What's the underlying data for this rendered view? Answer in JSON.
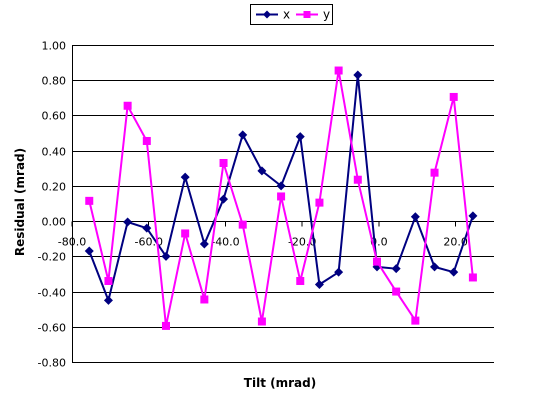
{
  "chart_data": {
    "type": "line",
    "xlabel": "Tilt (mrad)",
    "ylabel": "Residual (mrad)",
    "xlim": [
      -80,
      30
    ],
    "ylim": [
      -0.8,
      1.0
    ],
    "x_ticks": [
      -80,
      -60,
      -40,
      -20,
      0,
      20
    ],
    "x_tick_labels": [
      "-80.0",
      "-60.0",
      "-40.0",
      "-20.0",
      "0.0",
      "20.0"
    ],
    "y_ticks": [
      1.0,
      0.8,
      0.6,
      0.4,
      0.2,
      0.0,
      -0.2,
      -0.4,
      -0.6,
      -0.8
    ],
    "y_tick_labels": [
      "1.00",
      "0.80",
      "0.60",
      "0.40",
      "0.20",
      "0.00",
      "-0.20",
      "-0.40",
      "-0.60",
      "-0.80"
    ],
    "grid": "horizontal",
    "legend_position": "top",
    "series": [
      {
        "name": "x",
        "color": "#000080",
        "marker": "diamond",
        "points": [
          [
            -75.5,
            -0.17
          ],
          [
            -70.5,
            -0.45
          ],
          [
            -65.5,
            -0.005
          ],
          [
            -60.5,
            -0.04
          ],
          [
            -55.5,
            -0.2
          ],
          [
            -50.5,
            0.25
          ],
          [
            -45.5,
            -0.13
          ],
          [
            -40.5,
            0.125
          ],
          [
            -35.5,
            0.49
          ],
          [
            -30.5,
            0.285
          ],
          [
            -25.5,
            0.2
          ],
          [
            -20.5,
            0.48
          ],
          [
            -15.5,
            -0.36
          ],
          [
            -10.5,
            -0.29
          ],
          [
            -5.5,
            0.83
          ],
          [
            -0.5,
            -0.26
          ],
          [
            4.5,
            -0.27
          ],
          [
            9.5,
            0.025
          ],
          [
            14.5,
            -0.26
          ],
          [
            19.5,
            -0.29
          ],
          [
            24.5,
            0.03
          ]
        ]
      },
      {
        "name": "y",
        "color": "#ff00ff",
        "marker": "square",
        "points": [
          [
            -75.5,
            0.115
          ],
          [
            -70.5,
            -0.34
          ],
          [
            -65.5,
            0.655
          ],
          [
            -60.5,
            0.455
          ],
          [
            -55.5,
            -0.595
          ],
          [
            -50.5,
            -0.07
          ],
          [
            -45.5,
            -0.445
          ],
          [
            -40.5,
            0.33
          ],
          [
            -35.5,
            -0.02
          ],
          [
            -30.5,
            -0.57
          ],
          [
            -25.5,
            0.14
          ],
          [
            -20.5,
            -0.34
          ],
          [
            -15.5,
            0.105
          ],
          [
            -10.5,
            0.855
          ],
          [
            -5.5,
            0.235
          ],
          [
            -0.5,
            -0.23
          ],
          [
            4.5,
            -0.4
          ],
          [
            9.5,
            -0.565
          ],
          [
            14.5,
            0.275
          ],
          [
            19.5,
            0.705
          ],
          [
            24.5,
            -0.32
          ]
        ]
      }
    ]
  }
}
